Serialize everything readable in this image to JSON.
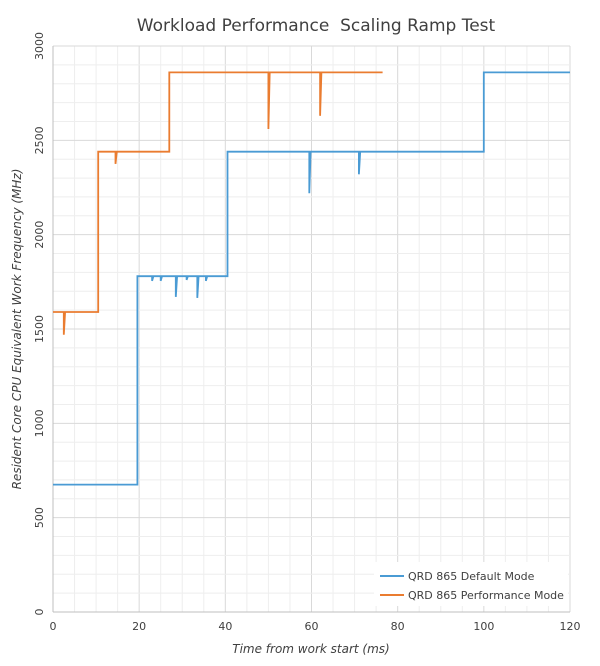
{
  "chart_data": {
    "type": "line",
    "title": "Workload Performance  Scaling Ramp Test",
    "xlabel": "Time from work start (ms)",
    "ylabel": "Resident Core CPU Equivalent Work Frequency (MHz)",
    "xlim": [
      0,
      120
    ],
    "ylim": [
      0,
      3000
    ],
    "x_ticks": [
      "0",
      "20",
      "40",
      "60",
      "80",
      "100",
      "120"
    ],
    "y_ticks": [
      "0",
      "500",
      "1000",
      "1500",
      "2000",
      "2500",
      "3000"
    ],
    "legend_position": "bottom-right",
    "series": [
      {
        "name": "QRD 865 Default Mode",
        "color": "#4a9bd4",
        "points": [
          [
            0,
            675
          ],
          [
            19.6,
            675
          ],
          [
            19.6,
            1780
          ],
          [
            23,
            1780
          ],
          [
            23,
            1755
          ],
          [
            23.3,
            1780
          ],
          [
            25,
            1780
          ],
          [
            25,
            1755
          ],
          [
            25.3,
            1780
          ],
          [
            28.5,
            1780
          ],
          [
            28.5,
            1670
          ],
          [
            28.8,
            1780
          ],
          [
            31,
            1780
          ],
          [
            31,
            1760
          ],
          [
            31.3,
            1780
          ],
          [
            33.5,
            1780
          ],
          [
            33.5,
            1665
          ],
          [
            33.8,
            1780
          ],
          [
            35.5,
            1780
          ],
          [
            35.5,
            1755
          ],
          [
            35.8,
            1780
          ],
          [
            40.5,
            1780
          ],
          [
            40.5,
            2440
          ],
          [
            59.5,
            2440
          ],
          [
            59.5,
            2220
          ],
          [
            59.8,
            2440
          ],
          [
            71,
            2440
          ],
          [
            71,
            2320
          ],
          [
            71.3,
            2440
          ],
          [
            100,
            2440
          ],
          [
            100,
            2860
          ],
          [
            120,
            2860
          ]
        ]
      },
      {
        "name": "QRD 865 Performance Mode",
        "color": "#ea7c30",
        "points": [
          [
            0,
            1590
          ],
          [
            2.5,
            1590
          ],
          [
            2.5,
            1470
          ],
          [
            2.8,
            1590
          ],
          [
            10.5,
            1590
          ],
          [
            10.5,
            2440
          ],
          [
            14.5,
            2440
          ],
          [
            14.5,
            2375
          ],
          [
            14.8,
            2440
          ],
          [
            27,
            2440
          ],
          [
            27,
            2860
          ],
          [
            50,
            2860
          ],
          [
            50,
            2560
          ],
          [
            50.3,
            2860
          ],
          [
            62,
            2860
          ],
          [
            62,
            2630
          ],
          [
            62.3,
            2860
          ],
          [
            76.5,
            2860
          ]
        ]
      }
    ]
  }
}
